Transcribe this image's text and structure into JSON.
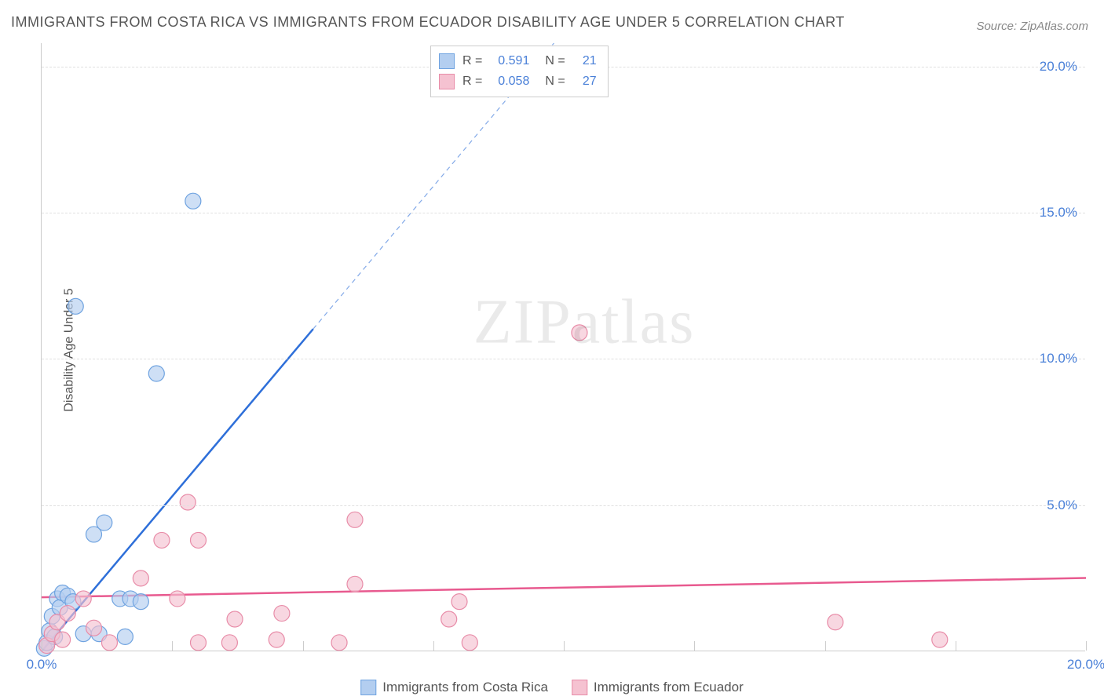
{
  "title": "IMMIGRANTS FROM COSTA RICA VS IMMIGRANTS FROM ECUADOR DISABILITY AGE UNDER 5 CORRELATION CHART",
  "source": "Source: ZipAtlas.com",
  "ylabel": "Disability Age Under 5",
  "watermark_zip": "ZIP",
  "watermark_atlas": "atlas",
  "chart": {
    "type": "scatter",
    "xlim": [
      0,
      20
    ],
    "ylim": [
      0,
      20.8
    ],
    "xticks": [
      0,
      2.5,
      5,
      7.5,
      10,
      12.5,
      15,
      17.5,
      20
    ],
    "xtick_labels": {
      "0": "0.0%",
      "20": "20.0%"
    },
    "yticks": [
      5,
      10,
      15,
      20
    ],
    "ytick_labels": {
      "5": "5.0%",
      "10": "10.0%",
      "15": "15.0%",
      "20": "20.0%"
    },
    "background_color": "#ffffff",
    "grid_color": "#e0e0e0",
    "axis_color": "#cccccc",
    "tick_label_color": "#4a80d8",
    "series": [
      {
        "name": "Immigrants from Costa Rica",
        "marker_fill": "#b3cef0",
        "marker_stroke": "#6fa3e0",
        "marker_radius": 10,
        "marker_opacity": 0.65,
        "R": "0.591",
        "N": "21",
        "trend_color": "#2e6fd9",
        "trend_width": 2.5,
        "trend_solid_end_x": 5.2,
        "trend_slope": 2.12,
        "trend_intercept": 0.0,
        "points": [
          [
            0.05,
            0.1
          ],
          [
            0.1,
            0.3
          ],
          [
            0.15,
            0.7
          ],
          [
            0.2,
            1.2
          ],
          [
            0.25,
            0.5
          ],
          [
            0.3,
            1.8
          ],
          [
            0.35,
            1.5
          ],
          [
            0.4,
            2.0
          ],
          [
            0.5,
            1.9
          ],
          [
            0.6,
            1.7
          ],
          [
            0.8,
            0.6
          ],
          [
            1.0,
            4.0
          ],
          [
            1.1,
            0.6
          ],
          [
            1.2,
            4.4
          ],
          [
            1.5,
            1.8
          ],
          [
            1.6,
            0.5
          ],
          [
            1.7,
            1.8
          ],
          [
            1.9,
            1.7
          ],
          [
            2.2,
            9.5
          ],
          [
            0.65,
            11.8
          ],
          [
            2.9,
            15.4
          ]
        ]
      },
      {
        "name": "Immigrants from Ecuador",
        "marker_fill": "#f5c2d1",
        "marker_stroke": "#e88ca8",
        "marker_radius": 10,
        "marker_opacity": 0.65,
        "R": "0.058",
        "N": "27",
        "trend_color": "#e85a8f",
        "trend_width": 2.5,
        "trend_solid_end_x": 20,
        "trend_slope": 0.033,
        "trend_intercept": 1.85,
        "points": [
          [
            0.1,
            0.2
          ],
          [
            0.2,
            0.6
          ],
          [
            0.3,
            1.0
          ],
          [
            0.4,
            0.4
          ],
          [
            0.5,
            1.3
          ],
          [
            0.8,
            1.8
          ],
          [
            1.0,
            0.8
          ],
          [
            1.3,
            0.3
          ],
          [
            1.9,
            2.5
          ],
          [
            2.3,
            3.8
          ],
          [
            2.6,
            1.8
          ],
          [
            2.8,
            5.1
          ],
          [
            3.0,
            3.8
          ],
          [
            3.0,
            0.3
          ],
          [
            3.6,
            0.3
          ],
          [
            3.7,
            1.1
          ],
          [
            4.5,
            0.4
          ],
          [
            4.6,
            1.3
          ],
          [
            5.7,
            0.3
          ],
          [
            6.0,
            2.3
          ],
          [
            6.0,
            4.5
          ],
          [
            7.8,
            1.1
          ],
          [
            8.0,
            1.7
          ],
          [
            8.2,
            0.3
          ],
          [
            10.3,
            10.9
          ],
          [
            15.2,
            1.0
          ],
          [
            17.2,
            0.4
          ]
        ]
      }
    ]
  },
  "legend_top": {
    "r_label": "R  =",
    "n_label": "N  ="
  },
  "legend_bottom": [
    {
      "swatch_fill": "#b3cef0",
      "swatch_stroke": "#6fa3e0",
      "label": "Immigrants from Costa Rica"
    },
    {
      "swatch_fill": "#f5c2d1",
      "swatch_stroke": "#e88ca8",
      "label": "Immigrants from Ecuador"
    }
  ]
}
